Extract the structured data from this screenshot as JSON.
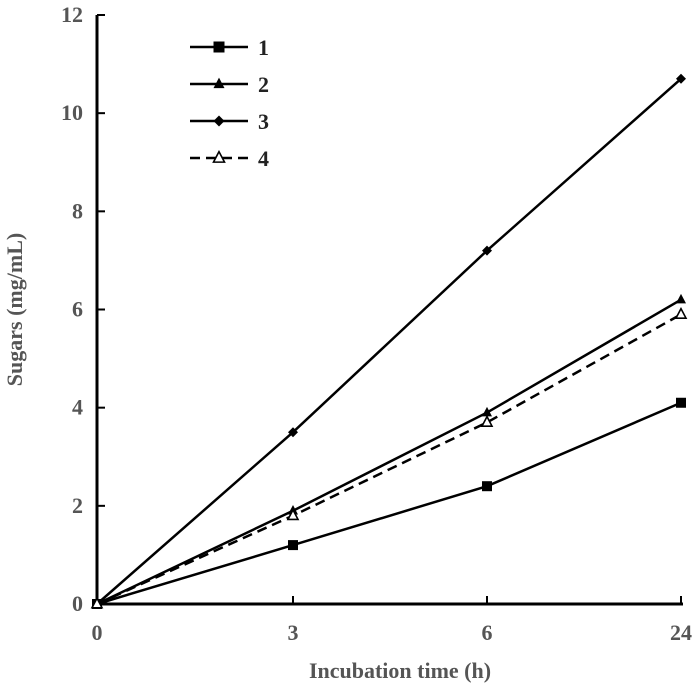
{
  "chart_data": {
    "type": "line",
    "title": "",
    "xlabel": "Incubation time (h)",
    "ylabel": "Sugars (mg/mL)",
    "categories": [
      "0",
      "3",
      "6",
      "24"
    ],
    "ylim": [
      0,
      12
    ],
    "yticks": [
      "0",
      "2",
      "4",
      "6",
      "8",
      "10",
      "12"
    ],
    "grid": false,
    "legend_position": "top-left",
    "series": [
      {
        "name": "1",
        "values": [
          0,
          1.2,
          2.4,
          4.1
        ],
        "marker": "square",
        "dash": false,
        "color": "#000000"
      },
      {
        "name": "2",
        "values": [
          0,
          1.9,
          3.9,
          6.2
        ],
        "marker": "triangle",
        "dash": false,
        "color": "#000000"
      },
      {
        "name": "3",
        "values": [
          0,
          3.5,
          7.2,
          10.7
        ],
        "marker": "diamond",
        "dash": false,
        "color": "#000000"
      },
      {
        "name": "4",
        "values": [
          0,
          1.8,
          3.7,
          5.9
        ],
        "marker": "triangle-open",
        "dash": true,
        "color": "#000000"
      }
    ]
  }
}
